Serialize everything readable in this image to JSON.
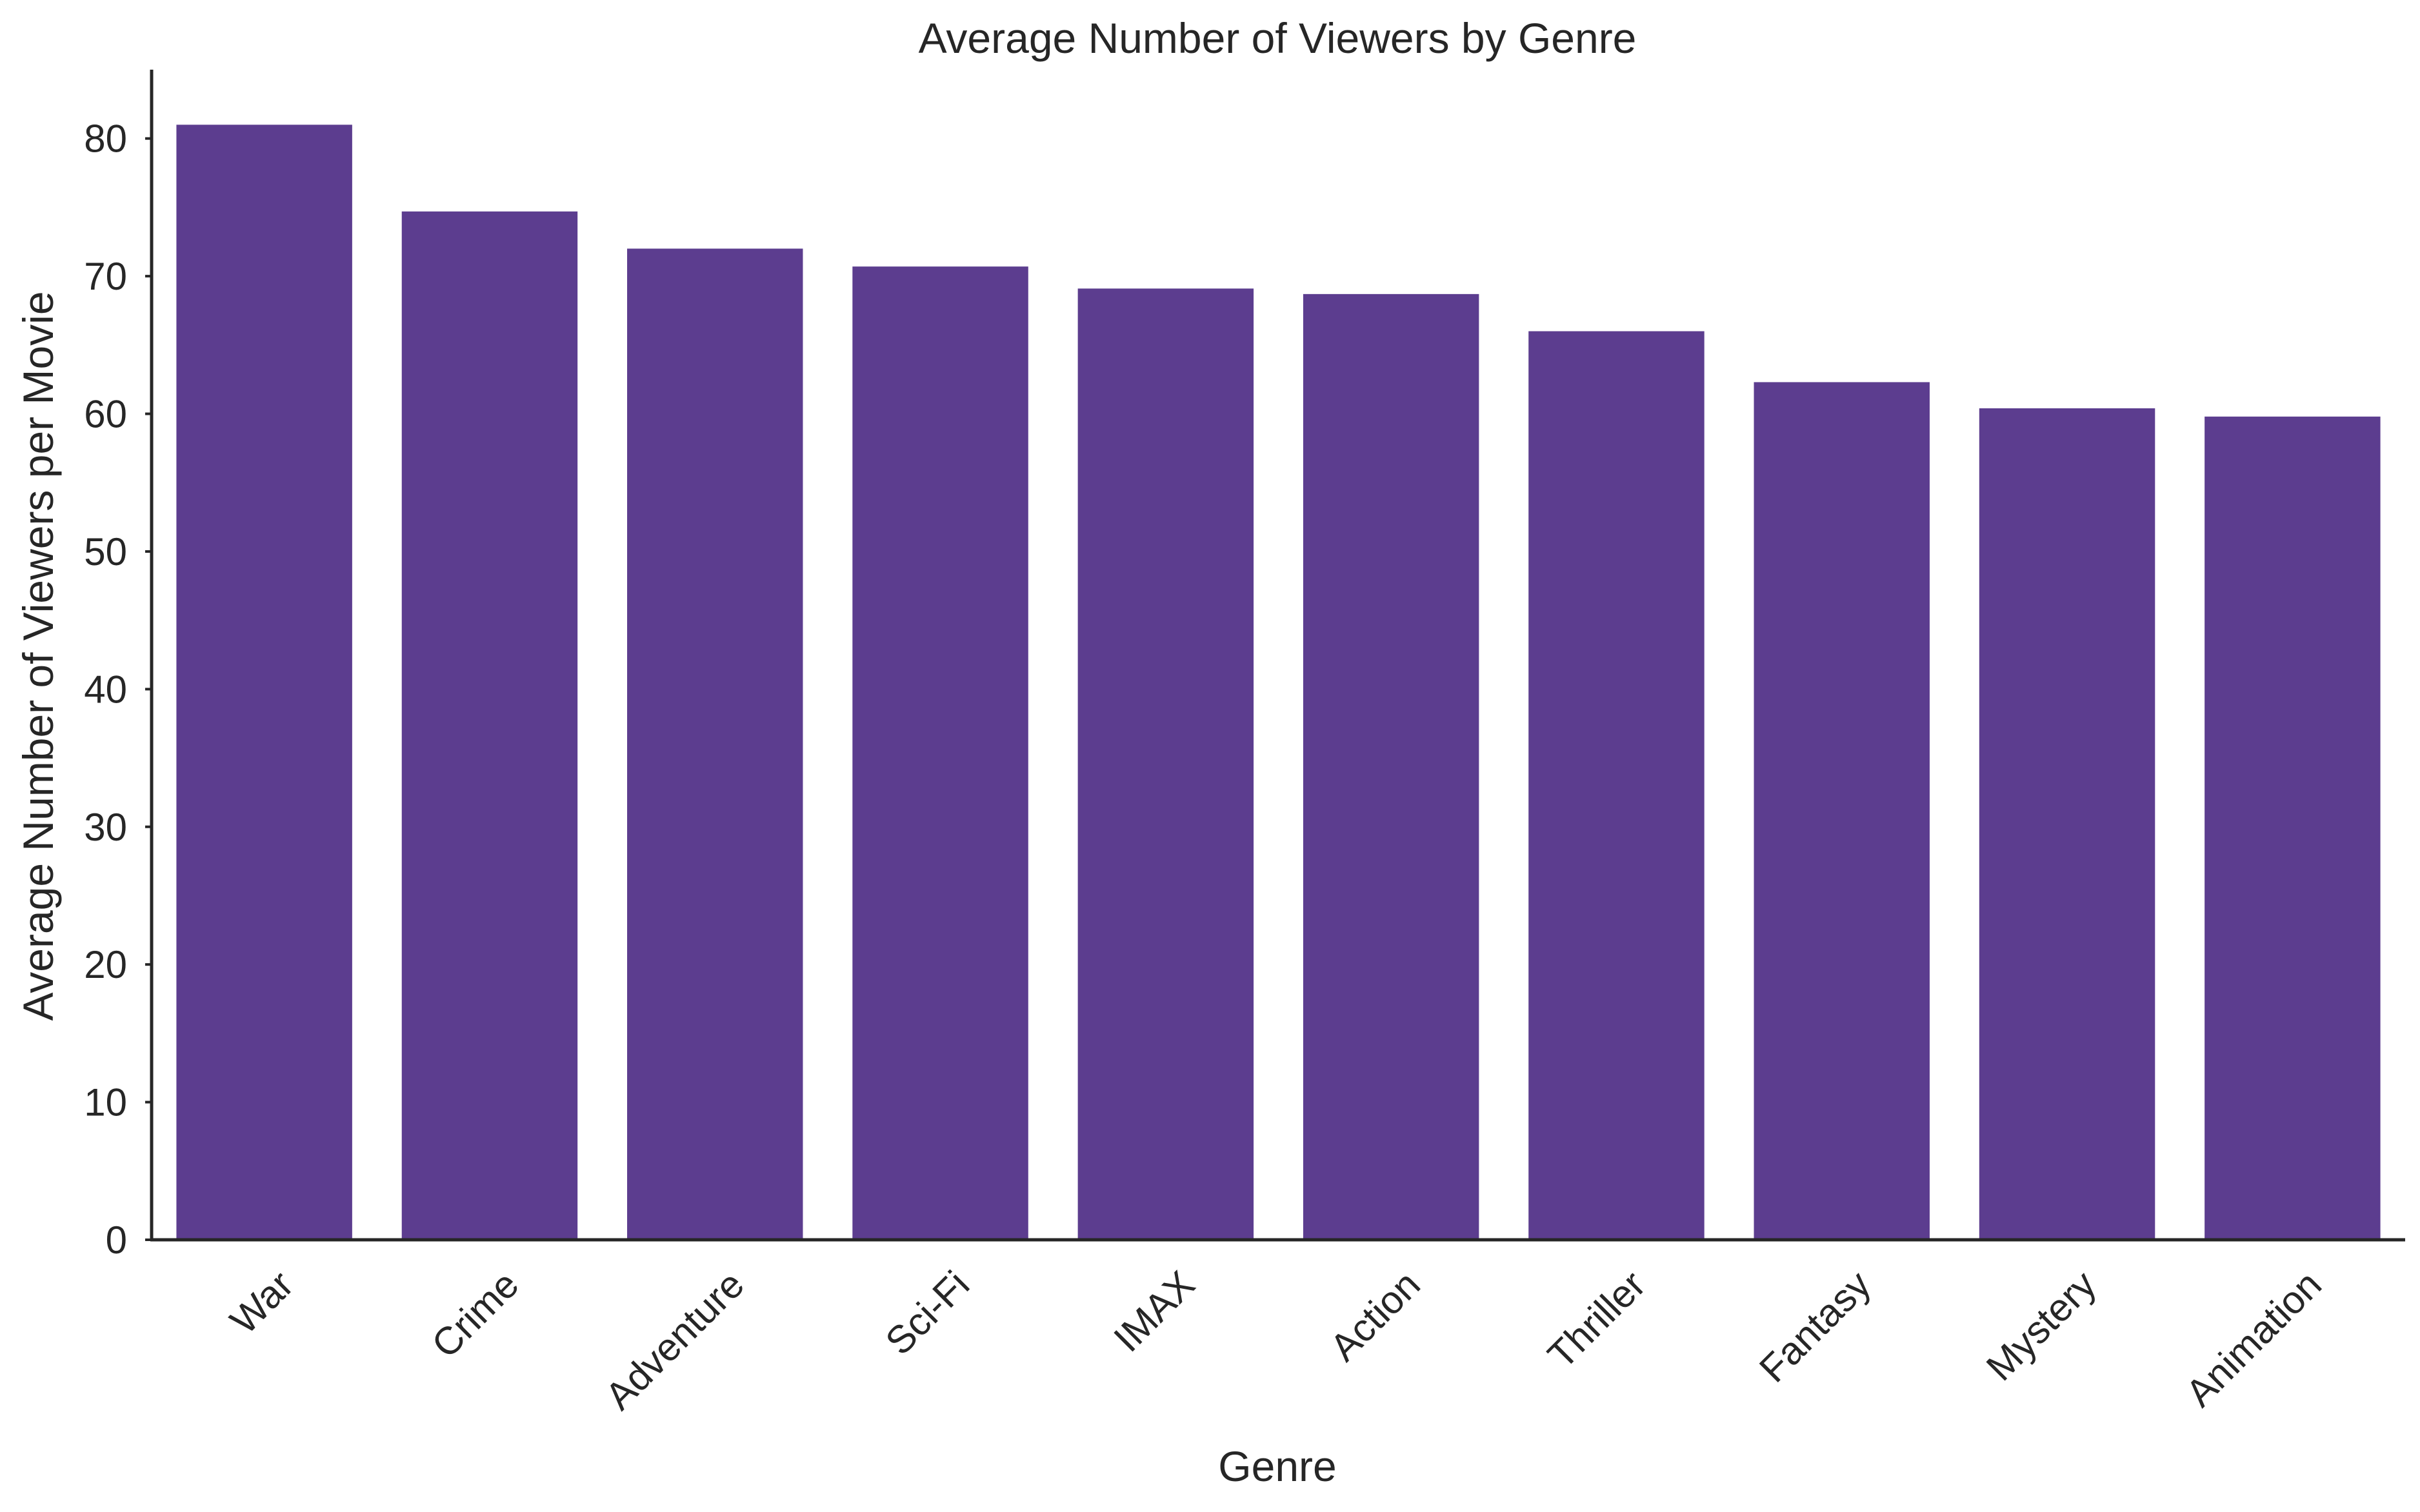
{
  "chart_data": {
    "type": "bar",
    "title": "Average Number of Viewers by Genre",
    "xlabel": "Genre",
    "ylabel": "Average Number of Viewers per Movie",
    "categories": [
      "War",
      "Crime",
      "Adventure",
      "Sci-Fi",
      "IMAX",
      "Action",
      "Thriller",
      "Fantasy",
      "Mystery",
      "Animation"
    ],
    "values": [
      81.0,
      74.7,
      72.0,
      70.7,
      69.1,
      68.7,
      66.0,
      62.3,
      60.4,
      59.8
    ],
    "yticks": [
      0,
      10,
      20,
      30,
      40,
      50,
      60,
      70,
      80
    ],
    "ylim": [
      0,
      85
    ],
    "bar_color": "#5c3d8f",
    "grid": false,
    "legend": "none"
  }
}
